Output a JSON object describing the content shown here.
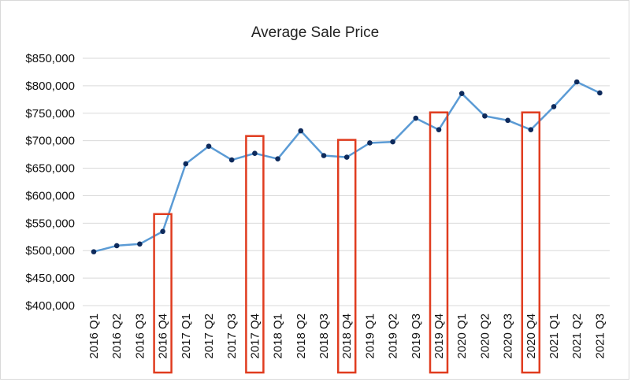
{
  "chart_data": {
    "type": "line",
    "title": "Average Sale Price",
    "xlabel": "",
    "ylabel": "",
    "categories": [
      "2016 Q1",
      "2016 Q2",
      "2016 Q3",
      "2016 Q4",
      "2017 Q1",
      "2017 Q2",
      "2017 Q3",
      "2017 Q4",
      "2018 Q1",
      "2018 Q2",
      "2018 Q3",
      "2018 Q4",
      "2019 Q1",
      "2019 Q2",
      "2019 Q3",
      "2019 Q4",
      "2020 Q1",
      "2020 Q2",
      "2020 Q3",
      "2020 Q4",
      "2021 Q1",
      "2021 Q2",
      "2021 Q3"
    ],
    "series": [
      {
        "values": [
          498000,
          509000,
          512000,
          535000,
          658000,
          690000,
          665000,
          677000,
          667000,
          718000,
          673000,
          670000,
          696000,
          698000,
          741000,
          720000,
          786000,
          745000,
          737000,
          720000,
          762000,
          807000,
          787000
        ]
      }
    ],
    "ylim": [
      400000,
      850000
    ],
    "yticks": [
      400000,
      450000,
      500000,
      550000,
      600000,
      650000,
      700000,
      750000,
      800000,
      850000
    ],
    "ytick_labels": [
      "$400,000",
      "$450,000",
      "$500,000",
      "$550,000",
      "$600,000",
      "$650,000",
      "$700,000",
      "$750,000",
      "$800,000",
      "$850,000"
    ],
    "grid": true,
    "legend": "none",
    "highlighted_categories": [
      "2016 Q4",
      "2017 Q4",
      "2018 Q4",
      "2019 Q4",
      "2020 Q4"
    ],
    "colors": {
      "line": "#5b9bd5",
      "marker": "#0d2a5c",
      "highlight": "#e03c1f",
      "grid": "#d9d9d9"
    }
  }
}
